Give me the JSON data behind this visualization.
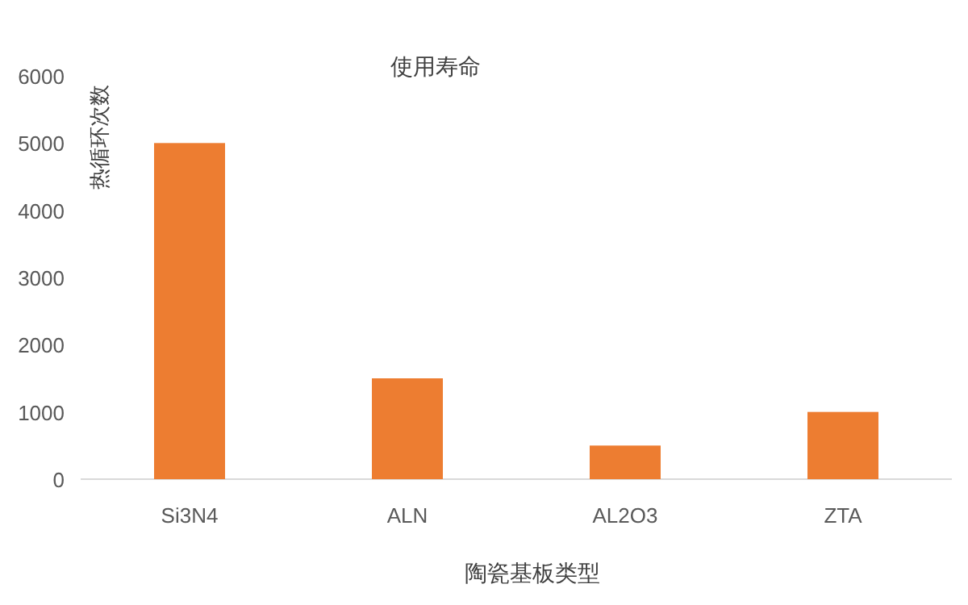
{
  "chart_data": {
    "type": "bar",
    "title": "使用寿命",
    "ylabel": "热循环次数",
    "xlabel": "陶瓷基板类型",
    "categories": [
      "Si3N4",
      "ALN",
      "AL2O3",
      "ZTA"
    ],
    "values": [
      5000,
      1500,
      500,
      1000
    ],
    "color": "#ed7d31",
    "ylim": [
      0,
      6000
    ],
    "yticks": [
      0,
      1000,
      2000,
      3000,
      4000,
      5000,
      6000
    ],
    "grid": false
  }
}
